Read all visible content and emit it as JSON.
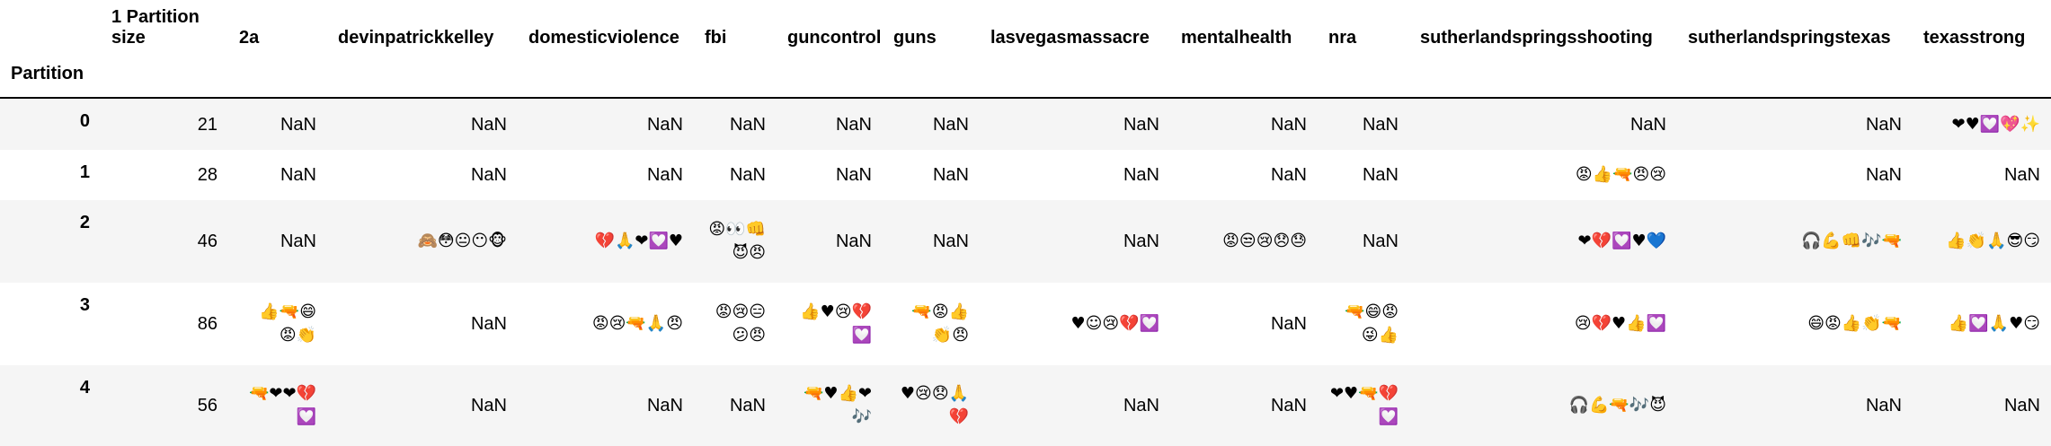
{
  "table": {
    "index_name": "Partition",
    "columns": [
      "1 Partition size",
      "2a",
      "devinpatrickkelley",
      "domesticviolence",
      "fbi",
      "guncontrol",
      "guns",
      "lasvegasmassacre",
      "mentalhealth",
      "nra",
      "sutherlandspringsshooting",
      "sutherlandspringstexas",
      "texasstrong"
    ],
    "rows": [
      {
        "index": "0",
        "cells": [
          "21",
          "NaN",
          "NaN",
          "NaN",
          "NaN",
          "NaN",
          "NaN",
          "NaN",
          "NaN",
          "NaN",
          "NaN",
          "NaN",
          "❤♥💟💖✨"
        ]
      },
      {
        "index": "1",
        "cells": [
          "28",
          "NaN",
          "NaN",
          "NaN",
          "NaN",
          "NaN",
          "NaN",
          "NaN",
          "NaN",
          "NaN",
          "😡👍🔫😠😢",
          "NaN",
          "NaN"
        ]
      },
      {
        "index": "2",
        "cells": [
          "46",
          "NaN",
          "🙈😳😐😶🐵",
          "💔🙏❤💟♥",
          "😡👀👊\n😈😠",
          "NaN",
          "NaN",
          "NaN",
          "😡😒😢😞😓",
          "NaN",
          "❤💔💟♥💙",
          "🎧💪👊🎶🔫",
          "👍👏🙏😎😏"
        ]
      },
      {
        "index": "3",
        "cells": [
          "86",
          "👍🔫😄\n😡👏",
          "NaN",
          "😡😢🔫🙏😠",
          "😡😢😑\n😕😠",
          "👍♥😢💔💟",
          "🔫😡👍\n👏😠",
          "♥☺😢💔💟",
          "NaN",
          "🔫😄😡\n😜👍",
          "😢💔♥👍💟",
          "😄😡👍👏🔫",
          "👍💟🙏♥😏"
        ]
      },
      {
        "index": "4",
        "cells": [
          "56",
          "🔫❤❤💔\n💟",
          "NaN",
          "NaN",
          "NaN",
          "🔫♥👍❤🎶",
          "♥😢😞🙏\n💔",
          "NaN",
          "NaN",
          "❤♥🔫💔\n💟",
          "🎧💪🔫🎶😈",
          "NaN",
          "NaN"
        ]
      }
    ]
  }
}
